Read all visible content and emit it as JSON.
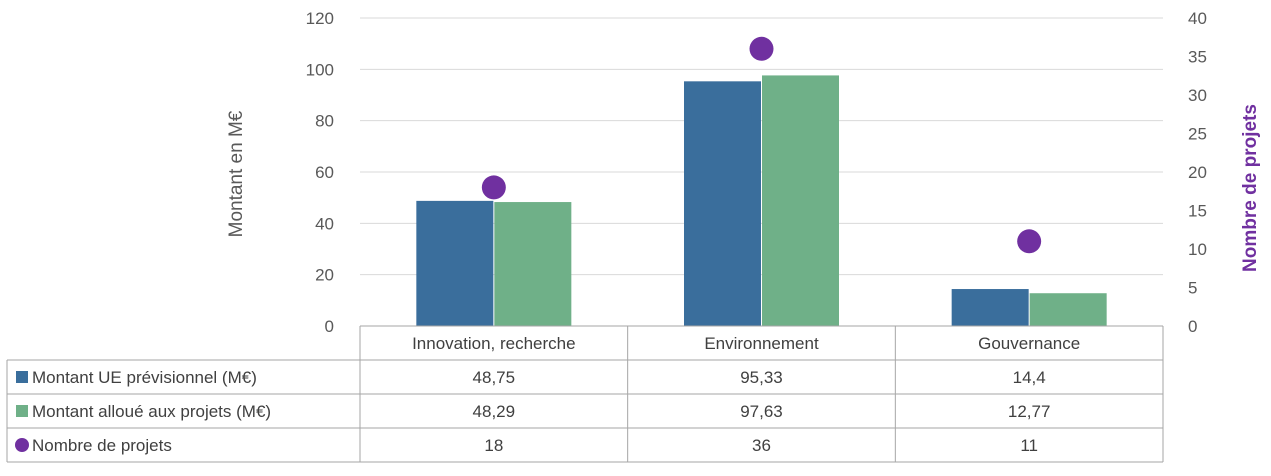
{
  "chart_data": {
    "type": "bar",
    "categories": [
      "Innovation, recherche",
      "Environnement",
      "Gouvernance"
    ],
    "series": [
      {
        "name": "Montant UE prévisionnel (M€)",
        "values": [
          48.75,
          95.33,
          14.4
        ],
        "display": [
          "48,75",
          "95,33",
          "14,4"
        ],
        "color": "#3a6e9c",
        "kind": "bar",
        "axis": "left"
      },
      {
        "name": "Montant alloué aux projets (M€)",
        "values": [
          48.29,
          97.63,
          12.77
        ],
        "display": [
          "48,29",
          "97,63",
          "12,77"
        ],
        "color": "#6fb088",
        "kind": "bar",
        "axis": "left"
      },
      {
        "name": "Nombre de projets",
        "values": [
          18,
          36,
          11
        ],
        "display": [
          "18",
          "36",
          "11"
        ],
        "color": "#7030a0",
        "kind": "marker",
        "axis": "right"
      }
    ],
    "ylabel": "Montant en M€",
    "y2label": "Nombre de projets",
    "ylim": [
      0,
      120
    ],
    "y2lim": [
      0,
      40
    ],
    "yticks": [
      0,
      20,
      40,
      60,
      80,
      100,
      120
    ],
    "y2ticks": [
      0,
      5,
      10,
      15,
      20,
      25,
      30,
      35,
      40
    ],
    "grid": true,
    "legend": "data-table"
  }
}
